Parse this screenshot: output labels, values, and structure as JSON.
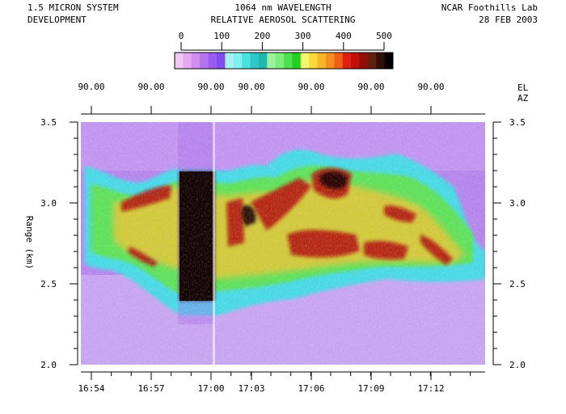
{
  "header": {
    "left_line1": "1.5 MICRON SYSTEM",
    "left_line2": "DEVELOPMENT",
    "center_line1": "1064 nm WAVELENGTH",
    "center_line2": "RELATIVE AEROSOL SCATTERING",
    "right_line1": "NCAR Foothills Lab",
    "right_line2": "28 FEB 2003"
  },
  "colorbar": {
    "ticks": [
      "0",
      "100",
      "200",
      "300",
      "400",
      "500"
    ],
    "range": [
      0,
      500
    ],
    "colors": [
      "#f2c6f2",
      "#e6a8f2",
      "#cf8ef0",
      "#b473f0",
      "#9a5cf0",
      "#7f4cf0",
      "#a6f2f2",
      "#7ef0f0",
      "#4ce0e0",
      "#2fc8c8",
      "#1fb8b0",
      "#9cf29c",
      "#78f078",
      "#4ee04e",
      "#22d022",
      "#f5f56e",
      "#f8da3a",
      "#f8b428",
      "#f88c20",
      "#f06018",
      "#e02010",
      "#c01008",
      "#901008",
      "#602010",
      "#301008",
      "#000000"
    ]
  },
  "top_axis": {
    "labels": [
      "90.00",
      "90.00",
      "90.00",
      "90.00",
      "90.00",
      "90.00",
      "90.00"
    ],
    "right_label_el": "EL",
    "right_label_az": "AZ"
  },
  "chart_data": {
    "type": "heatmap",
    "title": "RELATIVE AEROSOL SCATTERING",
    "xlabel": "",
    "ylabel": "Range (km)",
    "x_ticks": [
      "16:54",
      "16:57",
      "17:00",
      "17:03",
      "17:06",
      "17:09",
      "17:12"
    ],
    "y_ticks": [
      "2.0",
      "2.5",
      "3.0",
      "3.5"
    ],
    "ylim": [
      2.0,
      3.5
    ],
    "xlim": [
      "16:54",
      "17:14"
    ],
    "colorbar_range": [
      0,
      500
    ],
    "elevation": "90.00",
    "features": [
      {
        "name": "aerosol_layer_base_km",
        "values": [
          2.55,
          2.6,
          2.35,
          2.3,
          2.35,
          2.4,
          2.45,
          2.5,
          2.4
        ]
      },
      {
        "name": "aerosol_layer_top_km",
        "values": [
          3.2,
          3.05,
          3.25,
          3.25,
          3.2,
          3.35,
          3.3,
          3.25,
          3.1
        ]
      },
      {
        "name": "high_scattering_band_time",
        "values": [
          "16:58",
          "17:00"
        ]
      }
    ]
  }
}
